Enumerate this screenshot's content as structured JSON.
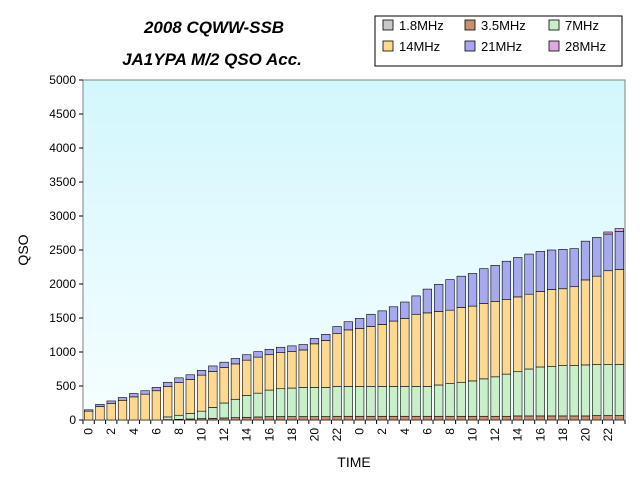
{
  "chart_data": {
    "type": "bar",
    "stacked": true,
    "title_lines": [
      "2008 CQWW-SSB",
      "JA1YPA M/2   QSO Acc."
    ],
    "xlabel": "TIME",
    "ylabel": "QSO",
    "ylim": [
      0,
      5000
    ],
    "yticks": [
      0,
      500,
      1000,
      1500,
      2000,
      2500,
      3000,
      3500,
      4000,
      4500,
      5000
    ],
    "grid": false,
    "legend_position": "top-right",
    "plot_background": "gradient light-cyan",
    "categories": [
      "0",
      "1",
      "2",
      "3",
      "4",
      "5",
      "6",
      "7",
      "8",
      "9",
      "10",
      "11",
      "12",
      "13",
      "14",
      "15",
      "16",
      "17",
      "18",
      "19",
      "20",
      "21",
      "22",
      "23",
      "0",
      "1",
      "2",
      "3",
      "4",
      "5",
      "6",
      "7",
      "8",
      "9",
      "10",
      "11",
      "12",
      "13",
      "14",
      "15",
      "16",
      "17",
      "18",
      "19",
      "20",
      "21",
      "22",
      "23"
    ],
    "tick_labels": [
      "0",
      "2",
      "4",
      "6",
      "8",
      "10",
      "12",
      "14",
      "16",
      "18",
      "20",
      "22",
      "0",
      "2",
      "4",
      "6",
      "8",
      "10",
      "12",
      "14",
      "16",
      "18",
      "20",
      "22"
    ],
    "series": [
      {
        "name": "1.8MHz",
        "color": "#C8C8C8",
        "values": [
          0,
          0,
          0,
          0,
          0,
          0,
          0,
          0,
          0,
          0,
          0,
          0,
          0,
          0,
          0,
          0,
          0,
          0,
          0,
          0,
          0,
          0,
          0,
          0,
          0,
          0,
          0,
          0,
          0,
          0,
          0,
          0,
          0,
          0,
          0,
          0,
          0,
          0,
          0,
          0,
          0,
          0,
          0,
          0,
          0,
          0,
          0,
          0
        ]
      },
      {
        "name": "3.5MHz",
        "color": "#C89070",
        "values": [
          0,
          0,
          0,
          0,
          0,
          0,
          0,
          5,
          10,
          15,
          20,
          25,
          30,
          35,
          40,
          45,
          50,
          50,
          50,
          50,
          50,
          50,
          55,
          55,
          55,
          55,
          55,
          55,
          55,
          55,
          55,
          55,
          55,
          55,
          55,
          55,
          55,
          55,
          60,
          60,
          60,
          60,
          60,
          60,
          60,
          65,
          65,
          65
        ]
      },
      {
        "name": "7MHz",
        "color": "#C8F0C8",
        "values": [
          0,
          0,
          0,
          0,
          0,
          0,
          0,
          40,
          60,
          80,
          110,
          160,
          220,
          270,
          320,
          350,
          390,
          410,
          420,
          430,
          430,
          430,
          440,
          440,
          440,
          440,
          440,
          440,
          440,
          440,
          440,
          460,
          480,
          500,
          520,
          550,
          580,
          620,
          650,
          690,
          720,
          730,
          740,
          740,
          750,
          750,
          750,
          750
        ]
      },
      {
        "name": "14MHz",
        "color": "#FFD890",
        "values": [
          130,
          200,
          240,
          290,
          340,
          380,
          430,
          450,
          480,
          500,
          530,
          530,
          520,
          520,
          520,
          530,
          520,
          530,
          540,
          550,
          640,
          690,
          780,
          830,
          850,
          880,
          910,
          960,
          1000,
          1060,
          1080,
          1080,
          1080,
          1100,
          1100,
          1110,
          1110,
          1100,
          1100,
          1100,
          1110,
          1130,
          1130,
          1160,
          1250,
          1300,
          1380,
          1400
        ]
      },
      {
        "name": "21MHz",
        "color": "#A8A8EE",
        "values": [
          20,
          30,
          40,
          40,
          50,
          50,
          50,
          60,
          70,
          70,
          70,
          80,
          80,
          80,
          80,
          80,
          80,
          80,
          80,
          80,
          80,
          90,
          100,
          120,
          150,
          180,
          200,
          210,
          240,
          270,
          350,
          400,
          450,
          460,
          480,
          510,
          530,
          560,
          580,
          590,
          590,
          580,
          580,
          560,
          570,
          570,
          540,
          560
        ]
      },
      {
        "name": "28MHz",
        "color": "#E0A8E0",
        "values": [
          0,
          0,
          0,
          0,
          0,
          0,
          0,
          0,
          0,
          0,
          0,
          0,
          0,
          0,
          0,
          0,
          0,
          0,
          0,
          0,
          0,
          0,
          0,
          0,
          0,
          0,
          0,
          0,
          0,
          0,
          0,
          0,
          0,
          0,
          0,
          0,
          0,
          0,
          0,
          0,
          0,
          0,
          0,
          0,
          0,
          0,
          30,
          40
        ]
      }
    ]
  }
}
